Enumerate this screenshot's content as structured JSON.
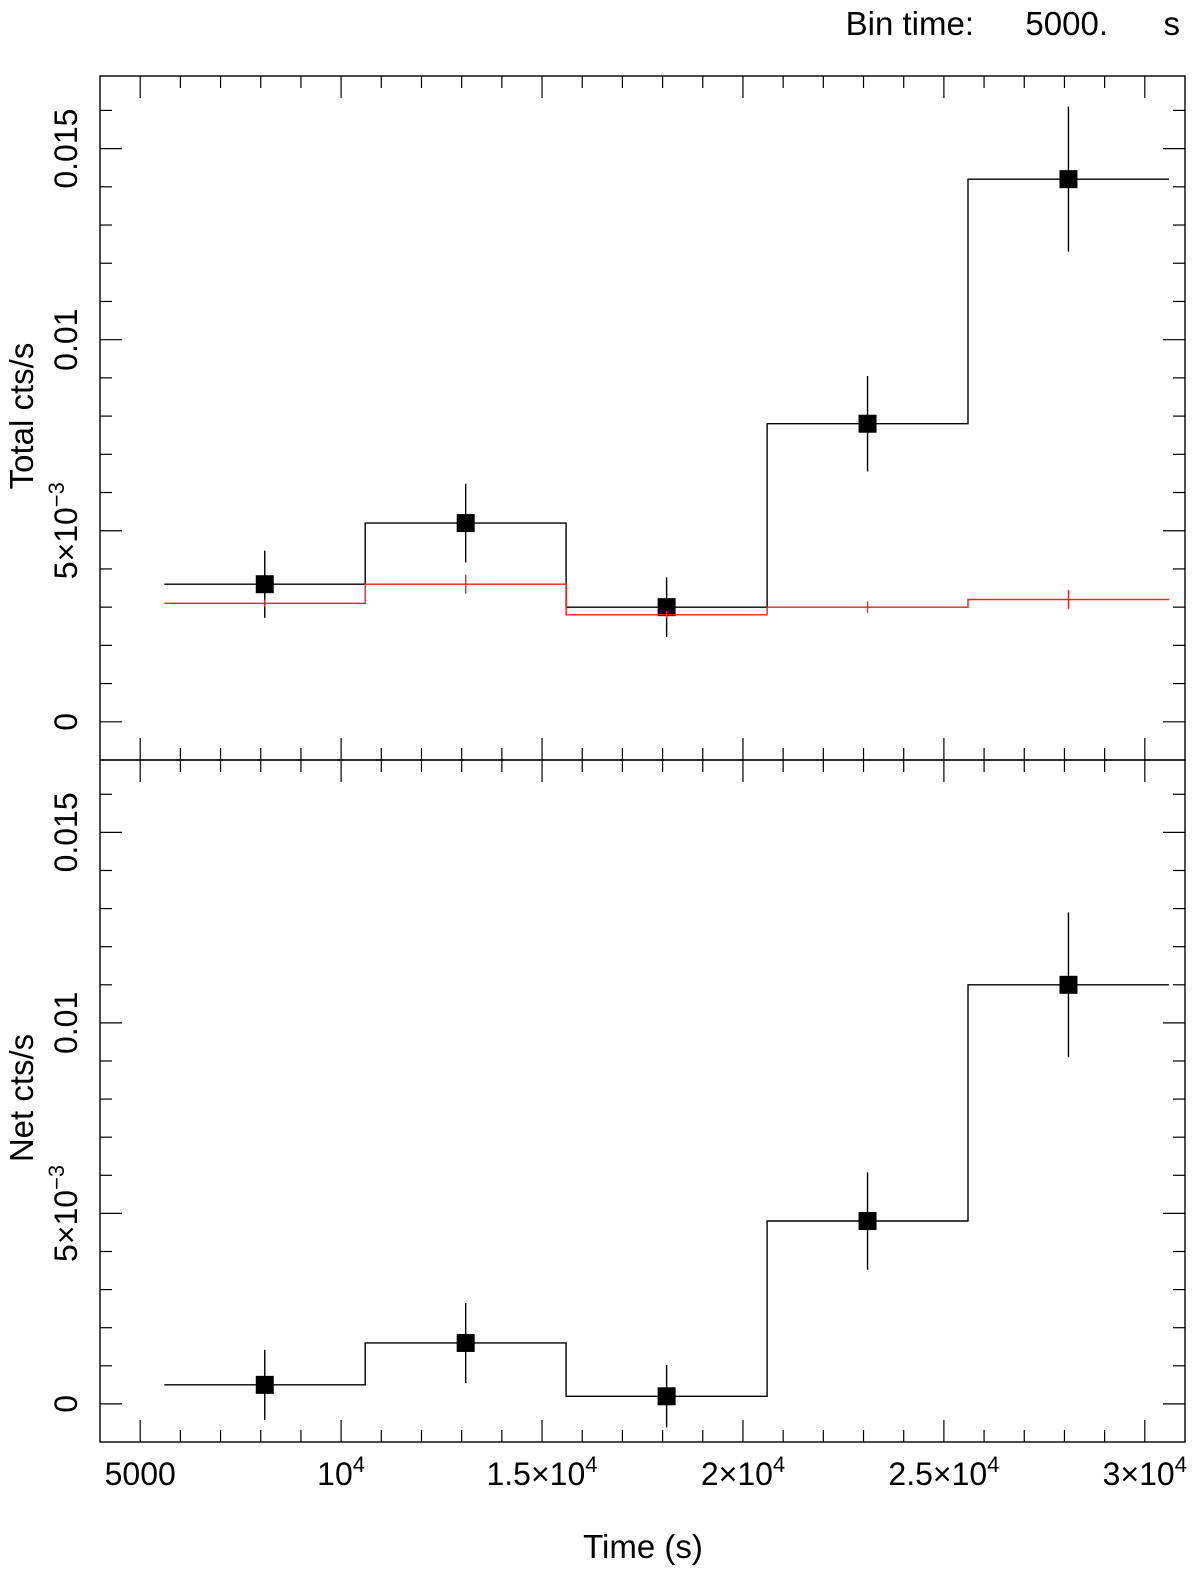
{
  "header": {
    "bin_label": "Bin time:",
    "bin_value": "5000.",
    "bin_unit": "s"
  },
  "colors": {
    "source": "#000000",
    "background": "#e8251f"
  },
  "chart_data": [
    {
      "type": "line",
      "panel": "top",
      "ylabel": "Total cts/s",
      "xlim": [
        4000,
        31000
      ],
      "ylim": [
        -0.001,
        0.0169
      ],
      "yticks": [
        {
          "value": 0,
          "label": "0"
        },
        {
          "value": 0.005,
          "label": "5×10",
          "exp": "−3"
        },
        {
          "value": 0.01,
          "label": "0.01"
        },
        {
          "value": 0.015,
          "label": "0.015"
        }
      ],
      "bin_edges": [
        5600,
        10600,
        15600,
        20600,
        25600,
        30600
      ],
      "series": [
        {
          "x": [
            8100,
            13100,
            18100,
            23100,
            28100
          ],
          "y": [
            0.0036,
            0.0052,
            0.003,
            0.0078,
            0.0142
          ],
          "yerr": [
            0.00088,
            0.00103,
            0.00078,
            0.00125,
            0.0019
          ],
          "markers": true
        },
        {
          "x": [
            8100,
            13100,
            18100,
            23100,
            28100
          ],
          "y": [
            0.0031,
            0.0036,
            0.0028,
            0.003,
            0.0032
          ],
          "yerr": [
            0.0001,
            0.00025,
            0.0001,
            0.00015,
            0.00025
          ],
          "markers": false
        }
      ]
    },
    {
      "type": "line",
      "panel": "bottom",
      "xlabel": "Time (s)",
      "ylabel": "Net cts/s",
      "xlim": [
        4000,
        31000
      ],
      "ylim": [
        -0.001,
        0.0169
      ],
      "xticks": [
        {
          "value": 5000,
          "label": "5000"
        },
        {
          "value": 10000,
          "label": "10",
          "exp": "4"
        },
        {
          "value": 15000,
          "label": "1.5×10",
          "exp": "4"
        },
        {
          "value": 20000,
          "label": "2×10",
          "exp": "4"
        },
        {
          "value": 25000,
          "label": "2.5×10",
          "exp": "4"
        },
        {
          "value": 30000,
          "label": "3×10",
          "exp": "4"
        }
      ],
      "yticks": [
        {
          "value": 0,
          "label": "0"
        },
        {
          "value": 0.005,
          "label": "5×10",
          "exp": "−3"
        },
        {
          "value": 0.01,
          "label": "0.01"
        },
        {
          "value": 0.015,
          "label": "0.015"
        }
      ],
      "bin_edges": [
        5600,
        10600,
        15600,
        20600,
        25600,
        30600
      ],
      "series": [
        {
          "x": [
            8100,
            13100,
            18100,
            23100,
            28100
          ],
          "y": [
            0.0005,
            0.0016,
            0.0002,
            0.0048,
            0.011
          ],
          "yerr": [
            0.00092,
            0.00105,
            0.00082,
            0.00128,
            0.0019
          ],
          "markers": true
        }
      ]
    }
  ]
}
